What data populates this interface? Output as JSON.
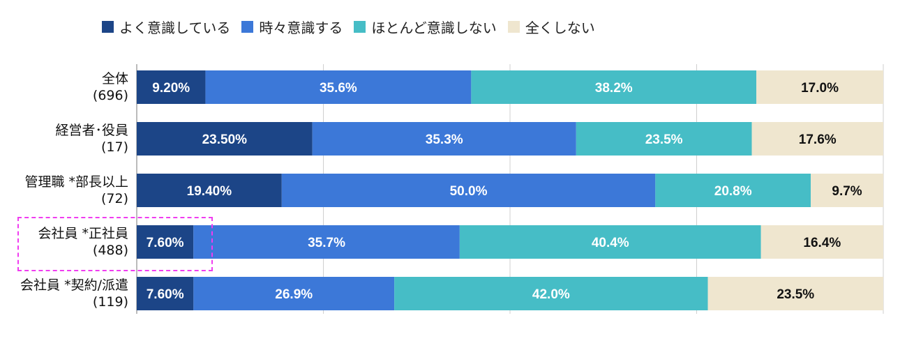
{
  "chart_data": {
    "type": "bar",
    "orientation": "horizontal",
    "stacked": true,
    "xlim": [
      0,
      100
    ],
    "grid": true,
    "legend_position": "top",
    "categories": [
      {
        "name": "全体",
        "n": "(696)"
      },
      {
        "name": "経営者･役員",
        "n": "(17)"
      },
      {
        "name": "管理職 *部長以上",
        "n": "(72)"
      },
      {
        "name": "会社員 *正社員",
        "n": "(488)"
      },
      {
        "name": "会社員 *契約/派遣",
        "n": "(119)"
      }
    ],
    "series": [
      {
        "name": "よく意識している",
        "color": "#1c4587",
        "text_color": "#ffffff",
        "values": [
          9.2,
          23.5,
          19.4,
          7.6,
          7.6
        ],
        "labels": [
          "9.20%",
          "23.50%",
          "19.40%",
          "7.60%",
          "7.60%"
        ]
      },
      {
        "name": "時々意識する",
        "color": "#3c78d8",
        "text_color": "#ffffff",
        "values": [
          35.6,
          35.3,
          50.0,
          35.7,
          26.9
        ],
        "labels": [
          "35.6%",
          "35.3%",
          "50.0%",
          "35.7%",
          "26.9%"
        ]
      },
      {
        "name": "ほとんど意識しない",
        "color": "#46bdc6",
        "text_color": "#ffffff",
        "values": [
          38.2,
          23.5,
          20.8,
          40.4,
          42.0
        ],
        "labels": [
          "38.2%",
          "23.5%",
          "20.8%",
          "40.4%",
          "42.0%"
        ]
      },
      {
        "name": "全くしない",
        "color": "#efe6cf",
        "text_color": "#111111",
        "values": [
          17.0,
          17.6,
          9.7,
          16.4,
          23.5
        ],
        "labels": [
          "17.0%",
          "17.6%",
          "9.7%",
          "16.4%",
          "23.5%"
        ]
      }
    ],
    "highlight_color": "#f03cf0"
  }
}
